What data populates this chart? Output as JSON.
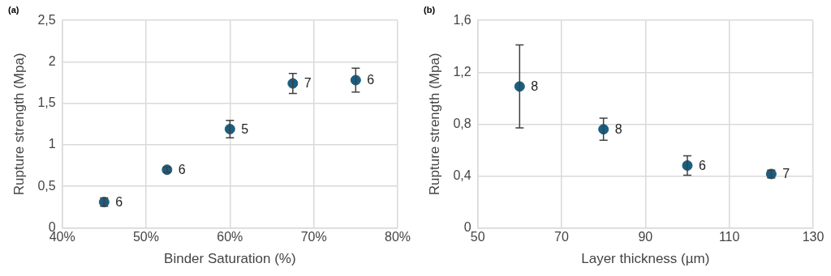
{
  "chart_data": [
    {
      "type": "scatter",
      "title": "(a)",
      "xlabel": "Binder Saturation (%)",
      "ylabel": "Rupture strength (Mpa)",
      "x": [
        0.45,
        0.525,
        0.6,
        0.675,
        0.75
      ],
      "series": [
        {
          "color": "#1a5e80",
          "values": [
            0.31,
            0.7,
            1.19,
            1.74,
            1.78
          ],
          "errors": [
            0.05,
            0.03,
            0.105,
            0.12,
            0.145
          ]
        }
      ],
      "xlim": [
        0.4,
        0.8
      ],
      "xticks": [
        {
          "value": 0.4,
          "label": "40%"
        },
        {
          "value": 0.5,
          "label": "50%"
        },
        {
          "value": 0.6,
          "label": "60%"
        },
        {
          "value": 0.7,
          "label": "70%"
        },
        {
          "value": 0.8,
          "label": "80%"
        }
      ],
      "ylim": [
        0,
        2.5
      ],
      "yticks": [
        0,
        {
          "value": 0.5,
          "label": "0,5"
        },
        1,
        {
          "value": 1.5,
          "label": "1,5"
        },
        2,
        {
          "value": 2.5,
          "label": "2,5"
        }
      ],
      "grid": true,
      "legend": false,
      "marker": "circle",
      "annotations": [
        {
          "text": "6",
          "x": 0.45,
          "y": 0.31
        },
        {
          "text": "6",
          "x": 0.525,
          "y": 0.7
        },
        {
          "text": "5",
          "x": 0.6,
          "y": 1.19
        },
        {
          "text": "7",
          "x": 0.675,
          "y": 1.74
        },
        {
          "text": "6",
          "x": 0.75,
          "y": 1.78
        }
      ]
    },
    {
      "type": "scatter",
      "title": "(b)",
      "xlabel": "Layer thickness (µm)",
      "ylabel": "Rupture strength (Mpa)",
      "x": [
        60,
        80,
        100,
        120
      ],
      "series": [
        {
          "color": "#1a5e80",
          "values": [
            1.09,
            0.76,
            0.48,
            0.415
          ],
          "errors": [
            [
              0.77,
              1.41
            ],
            0.085,
            0.075,
            0.03
          ]
        }
      ],
      "xlim": [
        50,
        130
      ],
      "xticks": [
        50,
        70,
        90,
        110,
        130
      ],
      "ylim": [
        0,
        1.6
      ],
      "yticks": [
        0,
        {
          "value": 0.4,
          "label": "0,4"
        },
        {
          "value": 0.8,
          "label": "0,8"
        },
        {
          "value": 1.2,
          "label": "1,2"
        },
        {
          "value": 1.6,
          "label": "1,6"
        }
      ],
      "grid": true,
      "legend": false,
      "marker": "circle",
      "annotations": [
        {
          "text": "8",
          "x": 60,
          "y": 1.09
        },
        {
          "text": "8",
          "x": 80,
          "y": 0.76
        },
        {
          "text": "6",
          "x": 100,
          "y": 0.48
        },
        {
          "text": "7",
          "x": 120,
          "y": 0.415
        }
      ]
    }
  ]
}
